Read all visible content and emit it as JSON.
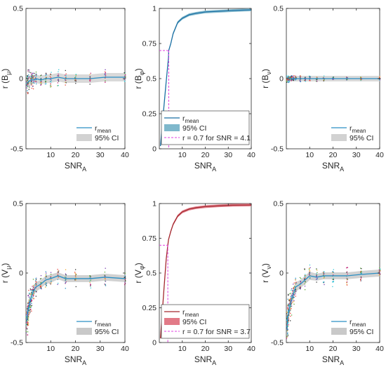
{
  "chart_data": [
    {
      "type": "line",
      "panel": "top-left",
      "ylabel": "r (B_μ)",
      "xlabel": "SNR_A",
      "xlim": [
        0,
        40
      ],
      "ylim": [
        -0.5,
        0.5
      ],
      "xticks": [
        "10",
        "20",
        "30",
        "40"
      ],
      "yticks": [
        "-0.5",
        "0",
        "0.5"
      ],
      "legend": {
        "position": "bottom-right",
        "entries": [
          "r_mean",
          "95% CI"
        ]
      },
      "series": [
        {
          "name": "r_mean",
          "x": [
            0.5,
            1,
            2,
            3,
            4,
            6,
            8,
            10,
            13,
            16,
            20,
            26,
            32,
            40
          ],
          "values": [
            -0.03,
            -0.02,
            -0.01,
            -0.01,
            0,
            -0.01,
            0,
            0,
            0.01,
            0,
            0,
            0,
            0.01,
            0.01
          ]
        }
      ],
      "ci_halfwidth": [
        0.05,
        0.04,
        0.035,
        0.03,
        0.03,
        0.03,
        0.03,
        0.03,
        0.03,
        0.03,
        0.03,
        0.03,
        0.03,
        0.03
      ],
      "scatter_spread": [
        0.12,
        0.1,
        0.09,
        0.08,
        0.07,
        0.07,
        0.07,
        0.08,
        0.07,
        0.07,
        0.06,
        0.06,
        0.07,
        0.05
      ],
      "line_color": "#2a8fc4",
      "ci_color": "#d2d2d2"
    },
    {
      "type": "line",
      "panel": "top-middle",
      "ylabel": "r (B_φ)",
      "xlabel": "SNR_A",
      "xlim": [
        0,
        40
      ],
      "ylim": [
        0,
        1
      ],
      "xticks": [
        "10",
        "20",
        "30",
        "40"
      ],
      "yticks": [
        "0",
        "0.25",
        "0.5",
        "0.75",
        "1"
      ],
      "legend": {
        "position": "bottom-right",
        "entries": [
          "r_mean",
          "95% CI",
          "r = 0.7 for SNR = 4.1"
        ]
      },
      "series": [
        {
          "name": "r_mean",
          "x": [
            0.5,
            1,
            2,
            3,
            4,
            4.1,
            5,
            6,
            8,
            10,
            13,
            16,
            20,
            26,
            32,
            40
          ],
          "values": [
            0.02,
            0.12,
            0.3,
            0.48,
            0.65,
            0.7,
            0.75,
            0.82,
            0.9,
            0.93,
            0.955,
            0.965,
            0.975,
            0.98,
            0.985,
            0.99
          ]
        }
      ],
      "threshold": {
        "x": 4.1,
        "y": 0.7
      },
      "line_color": "#1a6fa3",
      "ci_color": "#7fb8cc",
      "threshold_color": "#e23ee0"
    },
    {
      "type": "line",
      "panel": "top-right",
      "ylabel": "r (B_ν)",
      "xlabel": "SNR_A",
      "xlim": [
        0,
        40
      ],
      "ylim": [
        -0.5,
        0.5
      ],
      "xticks": [
        "10",
        "20",
        "30",
        "40"
      ],
      "yticks": [
        "-0.5",
        "0",
        "0.5"
      ],
      "legend": {
        "position": "bottom-right",
        "entries": [
          "r_mean",
          "95% CI"
        ]
      },
      "series": [
        {
          "name": "r_mean",
          "x": [
            0.5,
            1,
            2,
            3,
            4,
            6,
            8,
            10,
            13,
            16,
            20,
            26,
            32,
            40
          ],
          "values": [
            0,
            0,
            0,
            0,
            0,
            0,
            0,
            0,
            0,
            0,
            0,
            0,
            0,
            0
          ]
        }
      ],
      "ci_halfwidth": [
        0.02,
        0.02,
        0.02,
        0.02,
        0.02,
        0.02,
        0.02,
        0.02,
        0.02,
        0.02,
        0.02,
        0.02,
        0.02,
        0.02
      ],
      "scatter_spread": [
        0.04,
        0.03,
        0.03,
        0.03,
        0.03,
        0.03,
        0.03,
        0.03,
        0.03,
        0.03,
        0.02,
        0.02,
        0.02,
        0.02
      ],
      "line_color": "#2a8fc4",
      "ci_color": "#d2d2d2"
    },
    {
      "type": "line",
      "panel": "bottom-left",
      "ylabel": "r (V_μ)",
      "xlabel": "SNR_A",
      "xlim": [
        0,
        40
      ],
      "ylim": [
        -0.5,
        0.5
      ],
      "xticks": [
        "10",
        "20",
        "30",
        "40"
      ],
      "yticks": [
        "-0.5",
        "0",
        "0.5"
      ],
      "legend": {
        "position": "bottom-right",
        "entries": [
          "r_mean",
          "95% CI"
        ]
      },
      "series": [
        {
          "name": "r_mean",
          "x": [
            0.3,
            0.6,
            1,
            1.5,
            2,
            3,
            4,
            6,
            8,
            10,
            13,
            16,
            20,
            26,
            32,
            40
          ],
          "values": [
            -0.35,
            -0.3,
            -0.25,
            -0.22,
            -0.18,
            -0.13,
            -0.1,
            -0.08,
            -0.05,
            -0.04,
            -0.02,
            -0.04,
            -0.04,
            -0.04,
            -0.03,
            -0.04
          ]
        }
      ],
      "ci_halfwidth": [
        0.08,
        0.07,
        0.06,
        0.05,
        0.045,
        0.04,
        0.035,
        0.03,
        0.03,
        0.03,
        0.025,
        0.025,
        0.025,
        0.025,
        0.025,
        0.025
      ],
      "scatter_spread": [
        0.15,
        0.15,
        0.14,
        0.13,
        0.12,
        0.11,
        0.11,
        0.1,
        0.11,
        0.12,
        0.11,
        0.1,
        0.08,
        0.08,
        0.1,
        0.07
      ],
      "line_color": "#2a8fc4",
      "ci_color": "#c9c9c9"
    },
    {
      "type": "line",
      "panel": "bottom-middle",
      "ylabel": "r (V_φ)",
      "xlabel": "SNR_A",
      "xlim": [
        0,
        40
      ],
      "ylim": [
        0,
        1
      ],
      "xticks": [
        "10",
        "20",
        "30",
        "40"
      ],
      "yticks": [
        "0",
        "0.25",
        "0.5",
        "0.75",
        "1"
      ],
      "legend": {
        "position": "bottom-right",
        "entries": [
          "r_mean",
          "95% CI",
          "r = 0.7 for SNR = 3.7"
        ]
      },
      "series": [
        {
          "name": "r_mean",
          "x": [
            0.5,
            1,
            2,
            3,
            3.7,
            4,
            5,
            6,
            8,
            10,
            13,
            16,
            20,
            26,
            32,
            40
          ],
          "values": [
            0.03,
            0.15,
            0.38,
            0.6,
            0.7,
            0.74,
            0.8,
            0.85,
            0.91,
            0.94,
            0.96,
            0.97,
            0.978,
            0.984,
            0.988,
            0.99
          ]
        }
      ],
      "threshold": {
        "x": 3.7,
        "y": 0.7
      },
      "line_color": "#a3282e",
      "ci_color": "#e27a87",
      "threshold_color": "#e23ee0"
    },
    {
      "type": "line",
      "panel": "bottom-right",
      "ylabel": "r (V_ν)",
      "xlabel": "SNR_A",
      "xlim": [
        0,
        40
      ],
      "ylim": [
        -0.5,
        0.5
      ],
      "xticks": [
        "10",
        "20",
        "30",
        "40"
      ],
      "yticks": [
        "-0.5",
        "0",
        "0.5"
      ],
      "legend": {
        "position": "bottom-right",
        "entries": [
          "r_mean",
          "95% CI"
        ]
      },
      "series": [
        {
          "name": "r_mean",
          "x": [
            0.3,
            0.6,
            1,
            1.5,
            2,
            3,
            4,
            6,
            8,
            10,
            13,
            16,
            20,
            26,
            32,
            40
          ],
          "values": [
            -0.4,
            -0.32,
            -0.28,
            -0.24,
            -0.2,
            -0.15,
            -0.1,
            -0.08,
            -0.05,
            -0.02,
            -0.03,
            -0.02,
            -0.02,
            -0.02,
            -0.01,
            0
          ]
        }
      ],
      "ci_halfwidth": [
        0.08,
        0.07,
        0.06,
        0.05,
        0.045,
        0.04,
        0.035,
        0.03,
        0.03,
        0.03,
        0.025,
        0.025,
        0.025,
        0.025,
        0.025,
        0.025
      ],
      "scatter_spread": [
        0.15,
        0.15,
        0.14,
        0.13,
        0.12,
        0.11,
        0.1,
        0.1,
        0.1,
        0.1,
        0.1,
        0.09,
        0.09,
        0.1,
        0.08,
        0.06
      ],
      "line_color": "#2a8fc4",
      "ci_color": "#c9c9c9"
    }
  ]
}
